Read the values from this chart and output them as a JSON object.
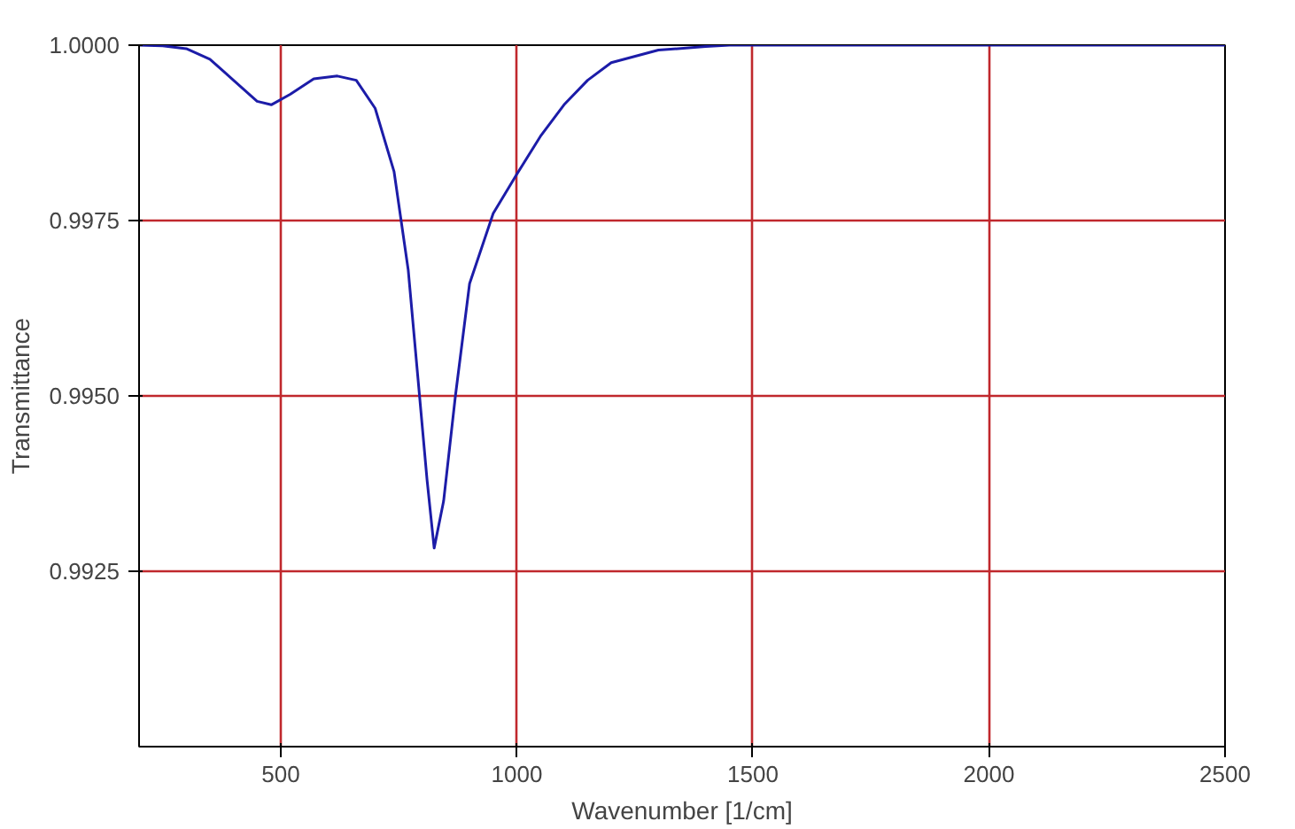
{
  "chart_data": {
    "type": "line",
    "xlabel": "Wavenumber [1/cm]",
    "ylabel": "Transmittance",
    "x": [
      200,
      250,
      300,
      350,
      400,
      450,
      480,
      520,
      570,
      620,
      660,
      700,
      740,
      770,
      790,
      810,
      825,
      845,
      870,
      900,
      950,
      1000,
      1050,
      1100,
      1150,
      1200,
      1300,
      1400,
      1450,
      2500
    ],
    "series": [
      {
        "color": "#1c1ca8",
        "values": [
          1.0,
          0.99999,
          0.99995,
          0.9998,
          0.9995,
          0.9992,
          0.99915,
          0.9993,
          0.99952,
          0.99956,
          0.9995,
          0.9991,
          0.9982,
          0.9968,
          0.9953,
          0.9938,
          0.99283,
          0.9935,
          0.995,
          0.9966,
          0.9976,
          0.99816,
          0.9987,
          0.99915,
          0.9995,
          0.99975,
          0.99993,
          0.99998,
          1.0,
          1.0
        ]
      }
    ],
    "xlim": [
      200,
      2500
    ],
    "ylim": [
      0.99,
      1.0
    ],
    "xticks": [
      500,
      1000,
      1500,
      2000,
      2500
    ],
    "yticks": [
      {
        "value": 0.9925,
        "label": "0.9925"
      },
      {
        "value": 0.995,
        "label": "0.9950"
      },
      {
        "value": 0.9975,
        "label": "0.9975"
      },
      {
        "value": 1.0,
        "label": "1.0000"
      }
    ],
    "grid": true,
    "line_style": "solid",
    "marker": "none"
  }
}
